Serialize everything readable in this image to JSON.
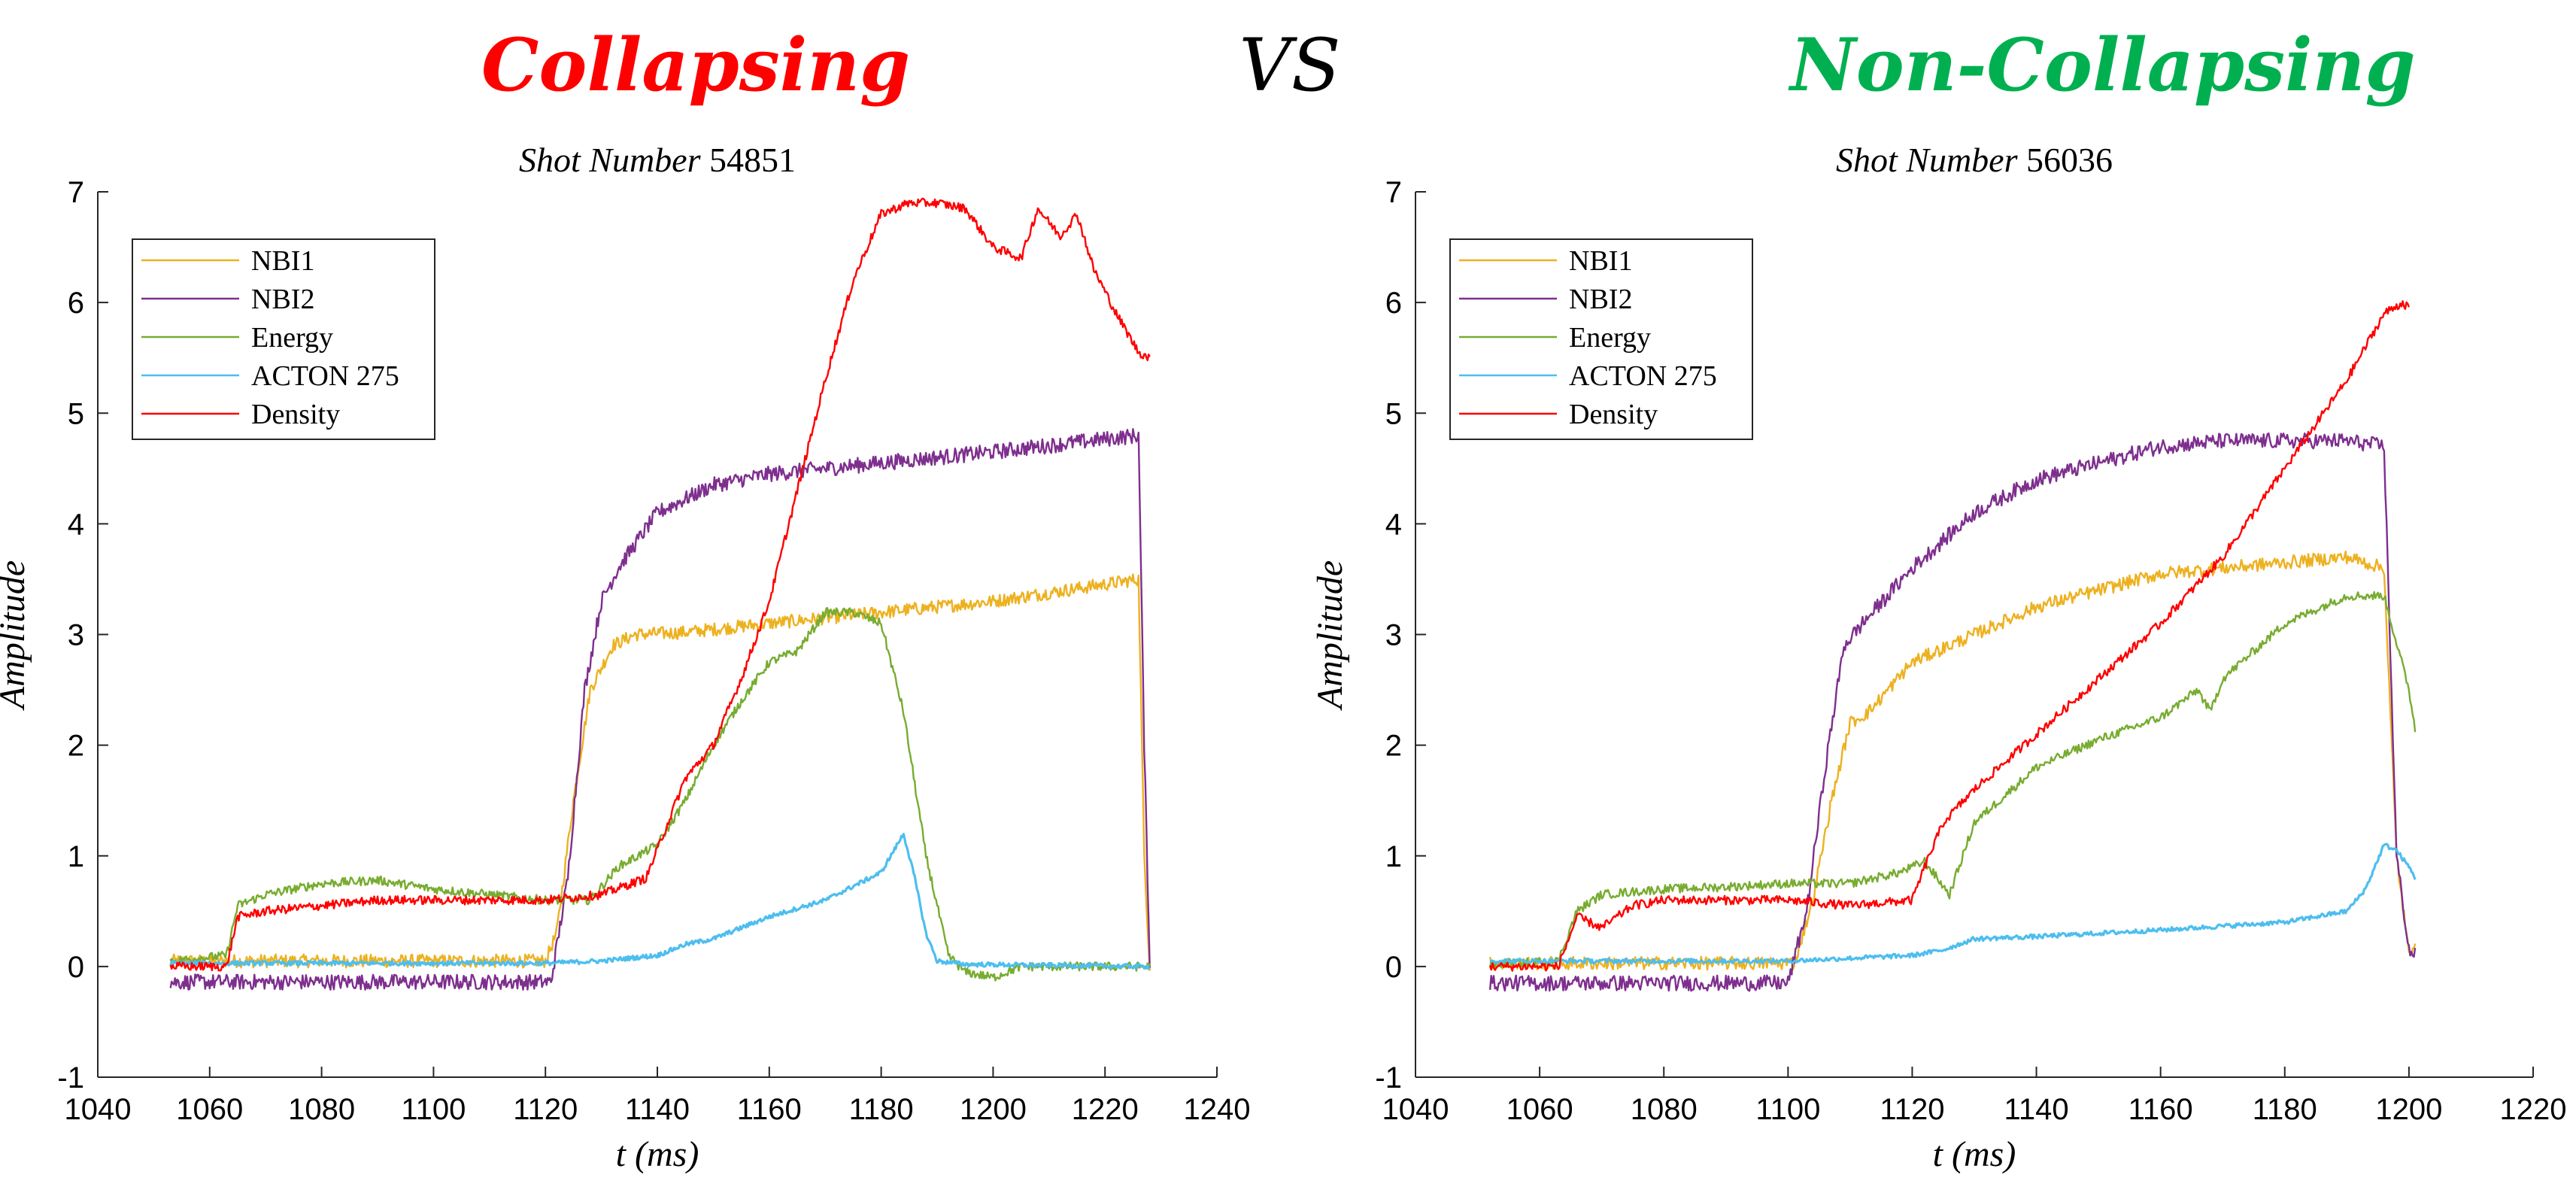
{
  "header": {
    "left": "Collapsing",
    "vs": "VS",
    "right": "Non-Collapsing"
  },
  "colors": {
    "left_header": "#ff0000",
    "right_header": "#00b050",
    "vs": "#000000"
  },
  "chart_data": [
    {
      "type": "line",
      "title": "Shot Number 54851",
      "title_italic": "Shot Number",
      "title_number": "54851",
      "xlabel": "t (ms)",
      "xlabel_var": "t",
      "xlabel_unit": "(ms)",
      "ylabel": "Amplitude",
      "xlim": [
        1040,
        1240
      ],
      "ylim": [
        -1,
        7
      ],
      "xticks": [
        1040,
        1060,
        1080,
        1100,
        1120,
        1140,
        1160,
        1180,
        1200,
        1220,
        1240
      ],
      "yticks": [
        -1,
        0,
        1,
        2,
        3,
        4,
        5,
        6,
        7
      ],
      "legend_position": "top-left",
      "grid": false,
      "series": [
        {
          "name": "NBI1",
          "color": "#EDB120",
          "noise": 0.06,
          "x": [
            1053,
            1120,
            1122,
            1125,
            1128,
            1132,
            1136,
            1145,
            1160,
            1180,
            1200,
            1226,
            1227,
            1228
          ],
          "y": [
            0.05,
            0.05,
            0.3,
            1.5,
            2.5,
            2.9,
            3.0,
            3.02,
            3.1,
            3.2,
            3.3,
            3.5,
            1.0,
            0.0
          ]
        },
        {
          "name": "NBI2",
          "color": "#7E2F8E",
          "noise": 0.07,
          "x": [
            1053,
            1121,
            1124,
            1127,
            1130,
            1133,
            1140,
            1150,
            1160,
            1180,
            1200,
            1226,
            1227,
            1228
          ],
          "y": [
            -0.14,
            -0.14,
            0.8,
            2.5,
            3.3,
            3.6,
            4.1,
            4.35,
            4.45,
            4.55,
            4.65,
            4.8,
            2.0,
            0.05
          ]
        },
        {
          "name": "Energy",
          "color": "#77AC30",
          "noise": 0.04,
          "x": [
            1053,
            1063,
            1065,
            1070,
            1080,
            1090,
            1100,
            1110,
            1120,
            1128,
            1133,
            1140,
            1145,
            1150,
            1155,
            1160,
            1165,
            1170,
            1175,
            1180,
            1184,
            1188,
            1192,
            1195,
            1200,
            1205,
            1228
          ],
          "y": [
            0.05,
            0.1,
            0.55,
            0.65,
            0.75,
            0.78,
            0.7,
            0.65,
            0.6,
            0.6,
            0.9,
            1.1,
            1.5,
            2.0,
            2.4,
            2.75,
            2.85,
            3.2,
            3.2,
            3.1,
            2.3,
            1.0,
            0.1,
            -0.05,
            -0.1,
            0.0,
            0.0
          ]
        },
        {
          "name": "ACTON 275",
          "color": "#4DBEEE",
          "noise": 0.02,
          "x": [
            1053,
            1120,
            1130,
            1140,
            1145,
            1150,
            1155,
            1160,
            1170,
            1180,
            1184,
            1186,
            1188,
            1190,
            1195,
            1228
          ],
          "y": [
            0.03,
            0.03,
            0.05,
            0.1,
            0.2,
            0.25,
            0.35,
            0.45,
            0.6,
            0.85,
            1.2,
            0.8,
            0.3,
            0.05,
            0.02,
            0.0
          ]
        },
        {
          "name": "Density",
          "color": "#FF0000",
          "noise": 0.04,
          "x": [
            1053,
            1063,
            1065,
            1070,
            1080,
            1090,
            1100,
            1110,
            1120,
            1130,
            1138,
            1145,
            1150,
            1155,
            1160,
            1165,
            1170,
            1175,
            1180,
            1185,
            1190,
            1195,
            1200,
            1205,
            1208,
            1212,
            1215,
            1218,
            1222,
            1226,
            1228
          ],
          "y": [
            0.0,
            0.0,
            0.45,
            0.5,
            0.55,
            0.6,
            0.6,
            0.6,
            0.6,
            0.65,
            0.8,
            1.7,
            2.0,
            2.6,
            3.3,
            4.3,
            5.3,
            6.2,
            6.8,
            6.9,
            6.9,
            6.85,
            6.5,
            6.4,
            6.85,
            6.6,
            6.8,
            6.3,
            5.9,
            5.55,
            5.5
          ]
        }
      ]
    },
    {
      "type": "line",
      "title": "Shot Number 56036",
      "title_italic": "Shot Number",
      "title_number": "56036",
      "xlabel": "t (ms)",
      "xlabel_var": "t",
      "xlabel_unit": "(ms)",
      "ylabel": "Amplitude",
      "xlim": [
        1040,
        1220
      ],
      "ylim": [
        -1,
        7
      ],
      "xticks": [
        1040,
        1060,
        1080,
        1100,
        1120,
        1140,
        1160,
        1180,
        1200,
        1220
      ],
      "yticks": [
        -1,
        0,
        1,
        2,
        3,
        4,
        5,
        6,
        7
      ],
      "legend_position": "top-left",
      "grid": false,
      "series": [
        {
          "name": "NBI1",
          "color": "#EDB120",
          "noise": 0.06,
          "x": [
            1052,
            1101,
            1104,
            1107,
            1110,
            1113,
            1120,
            1130,
            1140,
            1150,
            1160,
            1170,
            1180,
            1190,
            1196,
            1198,
            1200,
            1201
          ],
          "y": [
            0.03,
            0.03,
            0.6,
            1.5,
            2.2,
            2.3,
            2.75,
            3.0,
            3.25,
            3.4,
            3.55,
            3.6,
            3.65,
            3.7,
            3.6,
            1.0,
            0.1,
            0.25
          ]
        },
        {
          "name": "NBI2",
          "color": "#7E2F8E",
          "noise": 0.07,
          "x": [
            1052,
            1100,
            1103,
            1106,
            1109,
            1112,
            1120,
            1130,
            1140,
            1150,
            1160,
            1170,
            1180,
            1190,
            1196,
            1198,
            1200,
            1201
          ],
          "y": [
            -0.15,
            -0.15,
            0.5,
            1.8,
            2.9,
            3.1,
            3.6,
            4.1,
            4.4,
            4.55,
            4.7,
            4.75,
            4.75,
            4.75,
            4.7,
            1.0,
            0.15,
            0.1
          ]
        },
        {
          "name": "Energy",
          "color": "#77AC30",
          "noise": 0.04,
          "x": [
            1052,
            1063,
            1066,
            1070,
            1080,
            1090,
            1100,
            1110,
            1118,
            1122,
            1126,
            1130,
            1140,
            1150,
            1160,
            1166,
            1168,
            1170,
            1180,
            1190,
            1196,
            1200,
            1201
          ],
          "y": [
            0.02,
            0.05,
            0.5,
            0.65,
            0.7,
            0.72,
            0.75,
            0.75,
            0.85,
            0.95,
            0.65,
            1.3,
            1.8,
            2.05,
            2.25,
            2.5,
            2.3,
            2.6,
            3.1,
            3.35,
            3.35,
            2.5,
            2.15
          ]
        },
        {
          "name": "ACTON 275",
          "color": "#4DBEEE",
          "noise": 0.02,
          "x": [
            1052,
            1100,
            1120,
            1125,
            1130,
            1140,
            1160,
            1180,
            1190,
            1193,
            1196,
            1198,
            1200,
            1201
          ],
          "y": [
            0.05,
            0.05,
            0.1,
            0.15,
            0.25,
            0.27,
            0.33,
            0.4,
            0.5,
            0.7,
            1.1,
            1.05,
            0.9,
            0.8
          ]
        },
        {
          "name": "Density",
          "color": "#FF0000",
          "noise": 0.04,
          "x": [
            1052,
            1063,
            1066,
            1070,
            1075,
            1080,
            1090,
            1100,
            1110,
            1120,
            1122,
            1125,
            1130,
            1140,
            1150,
            1160,
            1170,
            1180,
            1190,
            1196,
            1199,
            1200
          ],
          "y": [
            0.0,
            0.0,
            0.45,
            0.35,
            0.55,
            0.6,
            0.6,
            0.6,
            0.55,
            0.6,
            0.9,
            1.3,
            1.6,
            2.1,
            2.6,
            3.1,
            3.7,
            4.5,
            5.3,
            5.9,
            6.0,
            5.95
          ]
        }
      ]
    }
  ]
}
